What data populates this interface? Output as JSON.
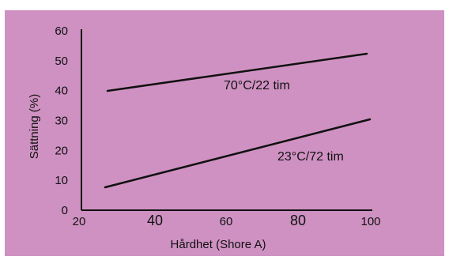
{
  "chart_data": {
    "type": "line",
    "title": "",
    "xlabel": "Hårdhet (Shore A)",
    "ylabel": "Sättning (%)",
    "xlim": [
      20,
      100
    ],
    "ylim": [
      0,
      60
    ],
    "x_ticks": [
      "20",
      "40",
      "60",
      "80",
      "100"
    ],
    "y_ticks": [
      "0",
      "10",
      "20",
      "30",
      "40",
      "50",
      "60"
    ],
    "grid": false,
    "legend": "none",
    "series": [
      {
        "name": "70°C/22 tim",
        "x": [
          27,
          98
        ],
        "y": [
          41,
          55
        ]
      },
      {
        "name": "23°C/72 tim",
        "x": [
          27,
          99
        ],
        "y": [
          7,
          31
        ]
      }
    ]
  },
  "colors": {
    "background": "#CF91C2",
    "line": "#111111",
    "text": "#111111"
  }
}
